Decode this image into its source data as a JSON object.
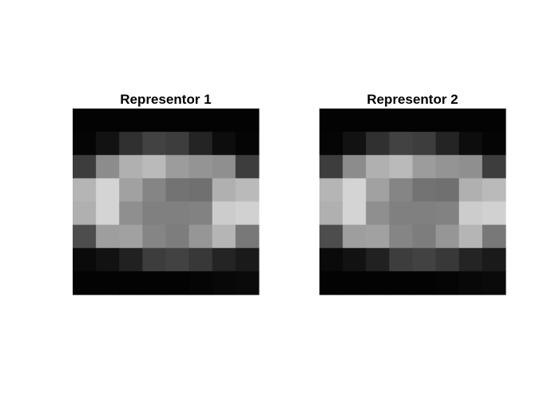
{
  "chart_data": [
    {
      "type": "heatmap",
      "title": "Representor 1",
      "colormap": "gray",
      "value_range": [
        0,
        1
      ],
      "rows": 8,
      "cols": 8,
      "values": [
        [
          0.01,
          0.01,
          0.01,
          0.01,
          0.01,
          0.01,
          0.01,
          0.01
        ],
        [
          0.02,
          0.07,
          0.19,
          0.26,
          0.24,
          0.14,
          0.05,
          0.02
        ],
        [
          0.24,
          0.55,
          0.69,
          0.73,
          0.61,
          0.58,
          0.56,
          0.24
        ],
        [
          0.71,
          0.83,
          0.63,
          0.52,
          0.45,
          0.44,
          0.69,
          0.73
        ],
        [
          0.69,
          0.83,
          0.56,
          0.5,
          0.5,
          0.51,
          0.8,
          0.82
        ],
        [
          0.3,
          0.62,
          0.63,
          0.52,
          0.49,
          0.59,
          0.71,
          0.47
        ],
        [
          0.04,
          0.07,
          0.13,
          0.24,
          0.26,
          0.22,
          0.14,
          0.1
        ],
        [
          0.01,
          0.01,
          0.01,
          0.01,
          0.01,
          0.02,
          0.03,
          0.04
        ]
      ]
    },
    {
      "type": "heatmap",
      "title": "Representor 2",
      "colormap": "gray",
      "value_range": [
        0,
        1
      ],
      "rows": 8,
      "cols": 8,
      "values": [
        [
          0.01,
          0.01,
          0.01,
          0.01,
          0.01,
          0.01,
          0.01,
          0.01
        ],
        [
          0.02,
          0.07,
          0.19,
          0.26,
          0.24,
          0.14,
          0.05,
          0.02
        ],
        [
          0.24,
          0.55,
          0.69,
          0.73,
          0.61,
          0.58,
          0.56,
          0.24
        ],
        [
          0.71,
          0.83,
          0.63,
          0.52,
          0.45,
          0.44,
          0.69,
          0.73
        ],
        [
          0.69,
          0.83,
          0.56,
          0.5,
          0.5,
          0.51,
          0.8,
          0.82
        ],
        [
          0.3,
          0.62,
          0.63,
          0.52,
          0.49,
          0.59,
          0.71,
          0.47
        ],
        [
          0.04,
          0.07,
          0.13,
          0.24,
          0.26,
          0.22,
          0.14,
          0.1
        ],
        [
          0.01,
          0.01,
          0.01,
          0.01,
          0.01,
          0.02,
          0.03,
          0.04
        ]
      ]
    }
  ]
}
